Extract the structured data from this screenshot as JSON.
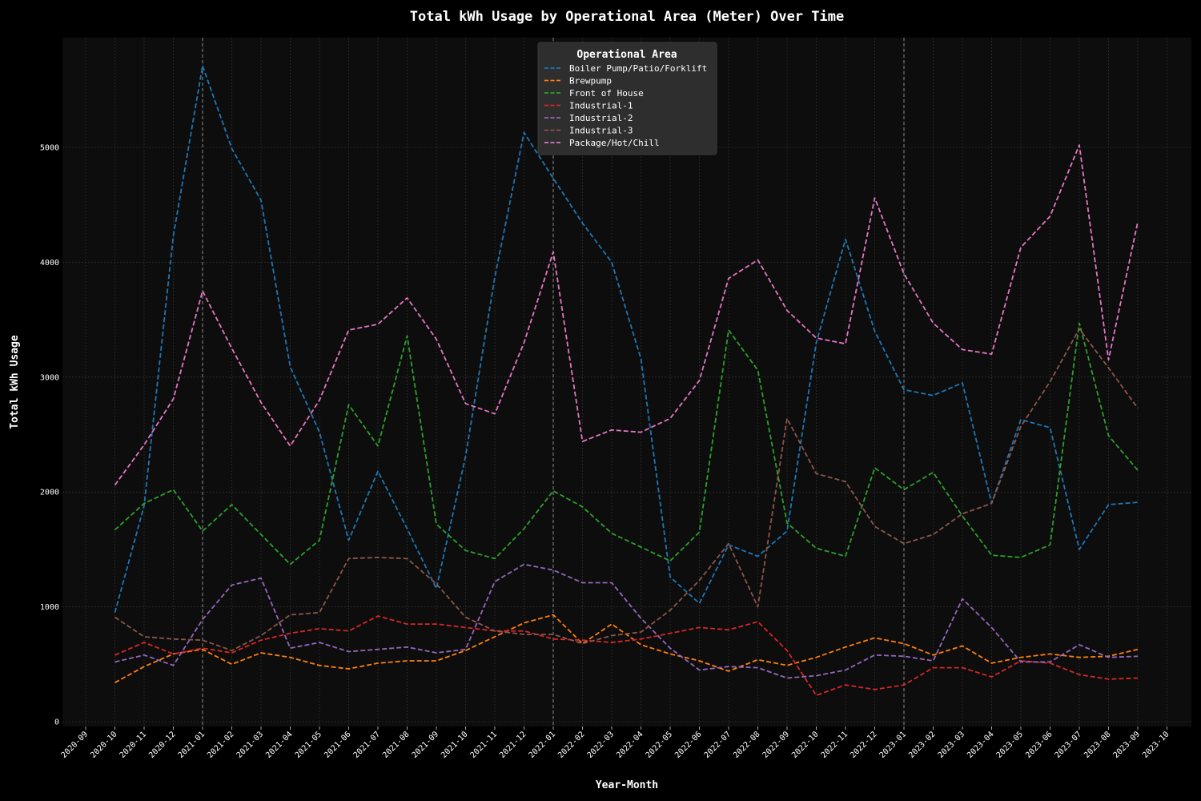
{
  "chart_data": {
    "type": "line",
    "title": "Total kWh Usage by Operational Area (Meter) Over Time",
    "xlabel": "Year-Month",
    "ylabel": "Total kWh Usage",
    "ylim": [
      0,
      6000
    ],
    "yticks": [
      0,
      1000,
      2000,
      3000,
      4000,
      5000
    ],
    "grid": true,
    "line_style": "dashed",
    "legend_title": "Operational Area",
    "legend_position": "top-center",
    "x_tick_labels": [
      "2020-09",
      "2020-10",
      "2020-11",
      "2020-12",
      "2021-01",
      "2021-02",
      "2021-03",
      "2021-04",
      "2021-05",
      "2021-06",
      "2021-07",
      "2021-08",
      "2021-09",
      "2021-10",
      "2021-11",
      "2021-12",
      "2022-01",
      "2022-02",
      "2022-03",
      "2022-04",
      "2022-05",
      "2022-06",
      "2022-07",
      "2022-08",
      "2022-09",
      "2022-10",
      "2022-11",
      "2022-12",
      "2023-01",
      "2023-02",
      "2023-03",
      "2023-04",
      "2023-05",
      "2023-06",
      "2023-07",
      "2023-08",
      "2023-09",
      "2023-10"
    ],
    "year_markers": [
      "2021-01",
      "2022-01",
      "2023-01"
    ],
    "x": [
      "2020-10",
      "2020-11",
      "2020-12",
      "2021-01",
      "2021-02",
      "2021-03",
      "2021-04",
      "2021-05",
      "2021-06",
      "2021-07",
      "2021-08",
      "2021-09",
      "2021-10",
      "2021-11",
      "2021-12",
      "2022-01",
      "2022-02",
      "2022-03",
      "2022-04",
      "2022-05",
      "2022-06",
      "2022-07",
      "2022-08",
      "2022-09",
      "2022-10",
      "2022-11",
      "2022-12",
      "2023-01",
      "2023-02",
      "2023-03",
      "2023-04",
      "2023-05",
      "2023-06",
      "2023-07",
      "2023-08",
      "2023-09"
    ],
    "series": [
      {
        "name": "Boiler Pump/Patio/Forklift",
        "color": "#1f77b4",
        "values": [
          950,
          1880,
          4230,
          5710,
          4990,
          4540,
          3090,
          2520,
          1580,
          2180,
          1680,
          1160,
          2310,
          3870,
          5130,
          4730,
          4340,
          4000,
          3160,
          1260,
          1030,
          1540,
          1440,
          1660,
          3300,
          4200,
          3400,
          2890,
          2840,
          2950,
          1900,
          2630,
          2560,
          1500,
          1890,
          1910
        ]
      },
      {
        "name": "Brewpump",
        "color": "#ff7f0e",
        "values": [
          340,
          480,
          590,
          630,
          500,
          600,
          560,
          490,
          460,
          510,
          530,
          530,
          620,
          740,
          860,
          930,
          680,
          850,
          670,
          590,
          530,
          440,
          540,
          490,
          560,
          650,
          730,
          680,
          580,
          660,
          510,
          560,
          590,
          560,
          570,
          630
        ]
      },
      {
        "name": "Front of House",
        "color": "#2ca02c",
        "values": [
          1670,
          1900,
          2020,
          1660,
          1890,
          1630,
          1370,
          1580,
          2760,
          2400,
          3360,
          1720,
          1490,
          1420,
          1680,
          2010,
          1870,
          1640,
          1520,
          1400,
          1650,
          3410,
          3060,
          1730,
          1510,
          1440,
          2210,
          2020,
          2170,
          1790,
          1450,
          1430,
          1540,
          3470,
          2490,
          2190
        ]
      },
      {
        "name": "Industrial-1",
        "color": "#d62728",
        "values": [
          580,
          690,
          590,
          640,
          600,
          710,
          770,
          810,
          790,
          920,
          850,
          850,
          820,
          790,
          790,
          720,
          710,
          690,
          720,
          770,
          820,
          800,
          870,
          620,
          230,
          320,
          280,
          320,
          470,
          470,
          390,
          530,
          510,
          410,
          370,
          380
        ]
      },
      {
        "name": "Industrial-2",
        "color": "#9467bd",
        "values": [
          520,
          580,
          490,
          890,
          1190,
          1250,
          640,
          690,
          610,
          630,
          650,
          600,
          630,
          1220,
          1370,
          1320,
          1210,
          1210,
          900,
          640,
          450,
          480,
          470,
          380,
          400,
          450,
          580,
          570,
          530,
          1070,
          820,
          520,
          520,
          670,
          560,
          570
        ]
      },
      {
        "name": "Industrial-3",
        "color": "#8c564b",
        "values": [
          910,
          740,
          720,
          710,
          620,
          750,
          930,
          950,
          1420,
          1430,
          1420,
          1200,
          910,
          790,
          760,
          760,
          680,
          750,
          780,
          970,
          1230,
          1550,
          1000,
          2640,
          2160,
          2090,
          1700,
          1550,
          1630,
          1810,
          1900,
          2570,
          2960,
          3420,
          3080,
          2730
        ]
      },
      {
        "name": "Package/Hot/Chill",
        "color": "#e377c2",
        "values": [
          2060,
          2410,
          2810,
          3750,
          3250,
          2780,
          2400,
          2800,
          3410,
          3460,
          3690,
          3330,
          2770,
          2680,
          3300,
          4090,
          2440,
          2540,
          2520,
          2640,
          2970,
          3860,
          4020,
          3580,
          3340,
          3290,
          4560,
          3900,
          3470,
          3240,
          3200,
          4130,
          4400,
          5020,
          3150,
          4350
        ]
      }
    ]
  }
}
